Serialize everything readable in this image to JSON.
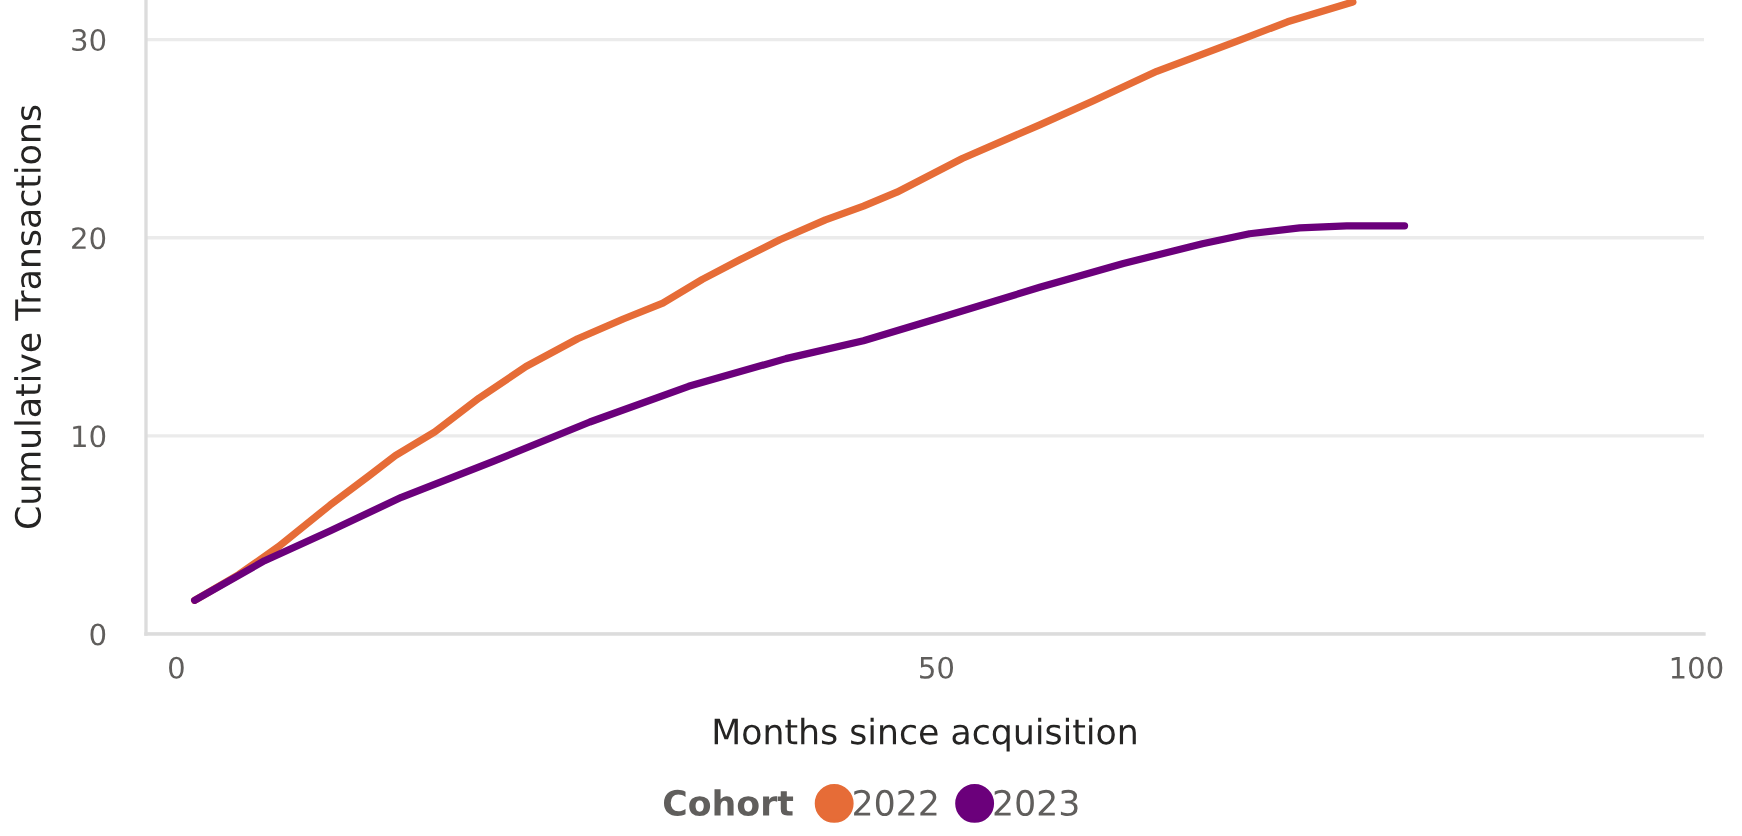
{
  "chart_data": {
    "type": "line",
    "xlabel": "Months since acquisition",
    "ylabel": "Cumulative Transactions",
    "legend_title": "Cohort",
    "legend": "bottom",
    "grid": "y",
    "line_style": "solid",
    "xlim": [
      -2,
      100.5
    ],
    "xticks": [
      0,
      50,
      100
    ],
    "ylim": [
      0,
      32
    ],
    "yticks": [
      0,
      10,
      20,
      30
    ],
    "series": [
      {
        "name": "2022",
        "color": "#e66c37",
        "x": [
          1.2,
          4.1,
          6.7,
          10.1,
          12.7,
          14.4,
          17.0,
          19.9,
          23.0,
          26.4,
          29.4,
          32.0,
          34.6,
          37.1,
          39.7,
          42.7,
          45.2,
          47.4,
          51.7,
          56.8,
          60.3,
          64.5,
          69.7,
          73.1,
          77.4
        ],
        "values": [
          1.7,
          3.0,
          4.4,
          6.5,
          8.0,
          9.0,
          10.2,
          11.9,
          13.5,
          14.9,
          15.9,
          16.7,
          17.9,
          18.9,
          19.9,
          20.9,
          21.6,
          22.3,
          24.0,
          25.7,
          26.9,
          28.4,
          29.9,
          30.9,
          31.9
        ]
      },
      {
        "name": "2023",
        "color": "#6b007b",
        "x": [
          1.2,
          5.8,
          10.1,
          14.8,
          20.8,
          27.2,
          33.7,
          40.1,
          45.2,
          50.4,
          56.8,
          62.3,
          67.5,
          70.6,
          73.9,
          77.0,
          80.8
        ],
        "values": [
          1.7,
          3.7,
          5.2,
          6.9,
          8.7,
          10.7,
          12.5,
          13.9,
          14.8,
          16.0,
          17.5,
          18.7,
          19.7,
          20.2,
          20.5,
          20.6,
          20.6
        ]
      }
    ]
  }
}
